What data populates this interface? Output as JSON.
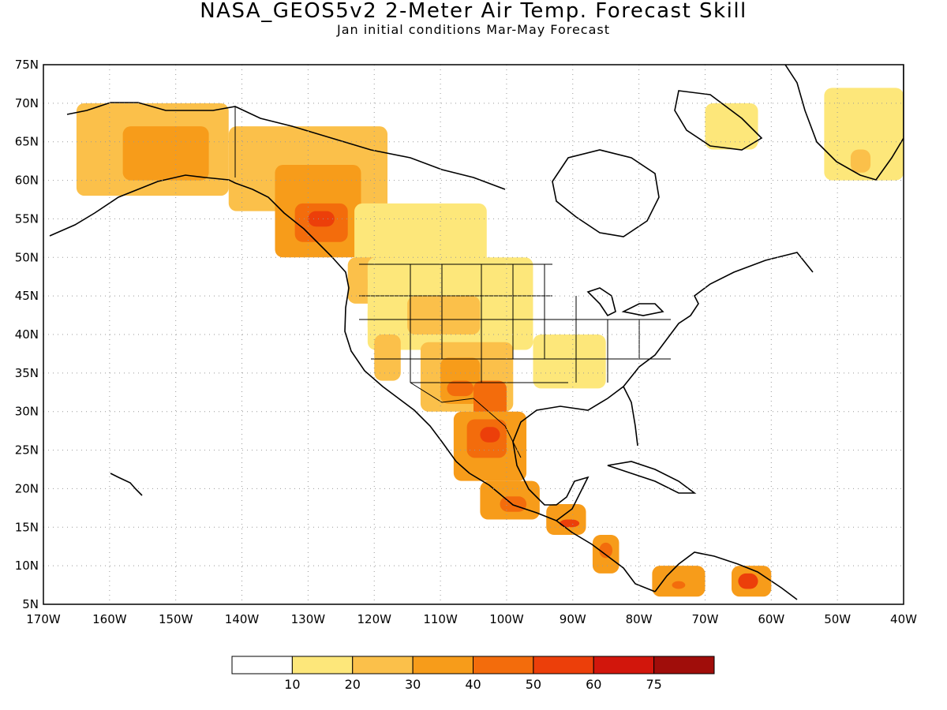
{
  "figure": {
    "title": "NASA_GEOS5v2 2-Meter Air Temp. Forecast Skill",
    "subtitle": "Jan initial conditions  Mar-May Forecast"
  },
  "chart_data": {
    "type": "heatmap",
    "lon_range": [
      -170,
      -40
    ],
    "lat_range": [
      5,
      75
    ],
    "x_ticks": [
      "170W",
      "160W",
      "150W",
      "140W",
      "130W",
      "120W",
      "110W",
      "100W",
      "90W",
      "80W",
      "70W",
      "60W",
      "50W",
      "40W"
    ],
    "y_ticks": [
      "5N",
      "10N",
      "15N",
      "20N",
      "25N",
      "30N",
      "35N",
      "40N",
      "45N",
      "50N",
      "55N",
      "60N",
      "65N",
      "70N",
      "75N"
    ],
    "grid": "dotted",
    "colorbar": {
      "labels": [
        "10",
        "20",
        "30",
        "40",
        "50",
        "60",
        "75"
      ],
      "colors": [
        "#ffffff",
        "#fde77a",
        "#fbc04a",
        "#f79c1a",
        "#f36c0c",
        "#ec3f0a",
        "#d2160c",
        "#a00d0a"
      ]
    },
    "regions": [
      {
        "lon": [
          -165,
          -142
        ],
        "lat": [
          58,
          70
        ],
        "level": 2
      },
      {
        "lon": [
          -158,
          -145
        ],
        "lat": [
          60,
          67
        ],
        "level": 3
      },
      {
        "lon": [
          -142,
          -118
        ],
        "lat": [
          56,
          67
        ],
        "level": 2
      },
      {
        "lon": [
          -135,
          -122
        ],
        "lat": [
          50,
          62
        ],
        "level": 3
      },
      {
        "lon": [
          -132,
          -124
        ],
        "lat": [
          52,
          57
        ],
        "level": 4
      },
      {
        "lon": [
          -130,
          -126
        ],
        "lat": [
          54,
          56
        ],
        "level": 5
      },
      {
        "lon": [
          -123,
          -103
        ],
        "lat": [
          49,
          57
        ],
        "level": 1
      },
      {
        "lon": [
          -124,
          -116
        ],
        "lat": [
          44,
          50
        ],
        "level": 2
      },
      {
        "lon": [
          -121,
          -116
        ],
        "lat": [
          45,
          48
        ],
        "level": 3
      },
      {
        "lon": [
          -121,
          -96
        ],
        "lat": [
          38,
          50
        ],
        "level": 1
      },
      {
        "lon": [
          -115,
          -104
        ],
        "lat": [
          40,
          45
        ],
        "level": 2
      },
      {
        "lon": [
          -113,
          -99
        ],
        "lat": [
          30,
          39
        ],
        "level": 2
      },
      {
        "lon": [
          -110,
          -104
        ],
        "lat": [
          31,
          37
        ],
        "level": 3
      },
      {
        "lon": [
          -109,
          -105
        ],
        "lat": [
          32,
          34
        ],
        "level": 4
      },
      {
        "lon": [
          -105,
          -100
        ],
        "lat": [
          28,
          34
        ],
        "level": 4
      },
      {
        "lon": [
          -96,
          -85
        ],
        "lat": [
          33,
          40
        ],
        "level": 1
      },
      {
        "lon": [
          -108,
          -97
        ],
        "lat": [
          21,
          30
        ],
        "level": 3
      },
      {
        "lon": [
          -106,
          -100
        ],
        "lat": [
          24,
          29
        ],
        "level": 4
      },
      {
        "lon": [
          -104,
          -101
        ],
        "lat": [
          26,
          28
        ],
        "level": 5
      },
      {
        "lon": [
          -104,
          -95
        ],
        "lat": [
          16,
          21
        ],
        "level": 3
      },
      {
        "lon": [
          -101,
          -97
        ],
        "lat": [
          17,
          19
        ],
        "level": 4
      },
      {
        "lon": [
          -94,
          -88
        ],
        "lat": [
          14,
          18
        ],
        "level": 3
      },
      {
        "lon": [
          -92,
          -89
        ],
        "lat": [
          15,
          16
        ],
        "level": 5
      },
      {
        "lon": [
          -87,
          -83
        ],
        "lat": [
          9,
          14
        ],
        "level": 3
      },
      {
        "lon": [
          -86,
          -84
        ],
        "lat": [
          11,
          13
        ],
        "level": 4
      },
      {
        "lon": [
          -78,
          -70
        ],
        "lat": [
          6,
          10
        ],
        "level": 3
      },
      {
        "lon": [
          -75,
          -73
        ],
        "lat": [
          7,
          8
        ],
        "level": 4
      },
      {
        "lon": [
          -66,
          -60
        ],
        "lat": [
          6,
          10
        ],
        "level": 3
      },
      {
        "lon": [
          -65,
          -62
        ],
        "lat": [
          7,
          9
        ],
        "level": 5
      },
      {
        "lon": [
          -70,
          -62
        ],
        "lat": [
          64,
          70
        ],
        "level": 1
      },
      {
        "lon": [
          -52,
          -40
        ],
        "lat": [
          60,
          72
        ],
        "level": 1
      },
      {
        "lon": [
          -48,
          -45
        ],
        "lat": [
          61,
          64
        ],
        "level": 2
      },
      {
        "lon": [
          -121,
          -118
        ],
        "lat": [
          40,
          44
        ],
        "level": 1
      },
      {
        "lon": [
          -120,
          -116
        ],
        "lat": [
          34,
          40
        ],
        "level": 2
      }
    ]
  }
}
